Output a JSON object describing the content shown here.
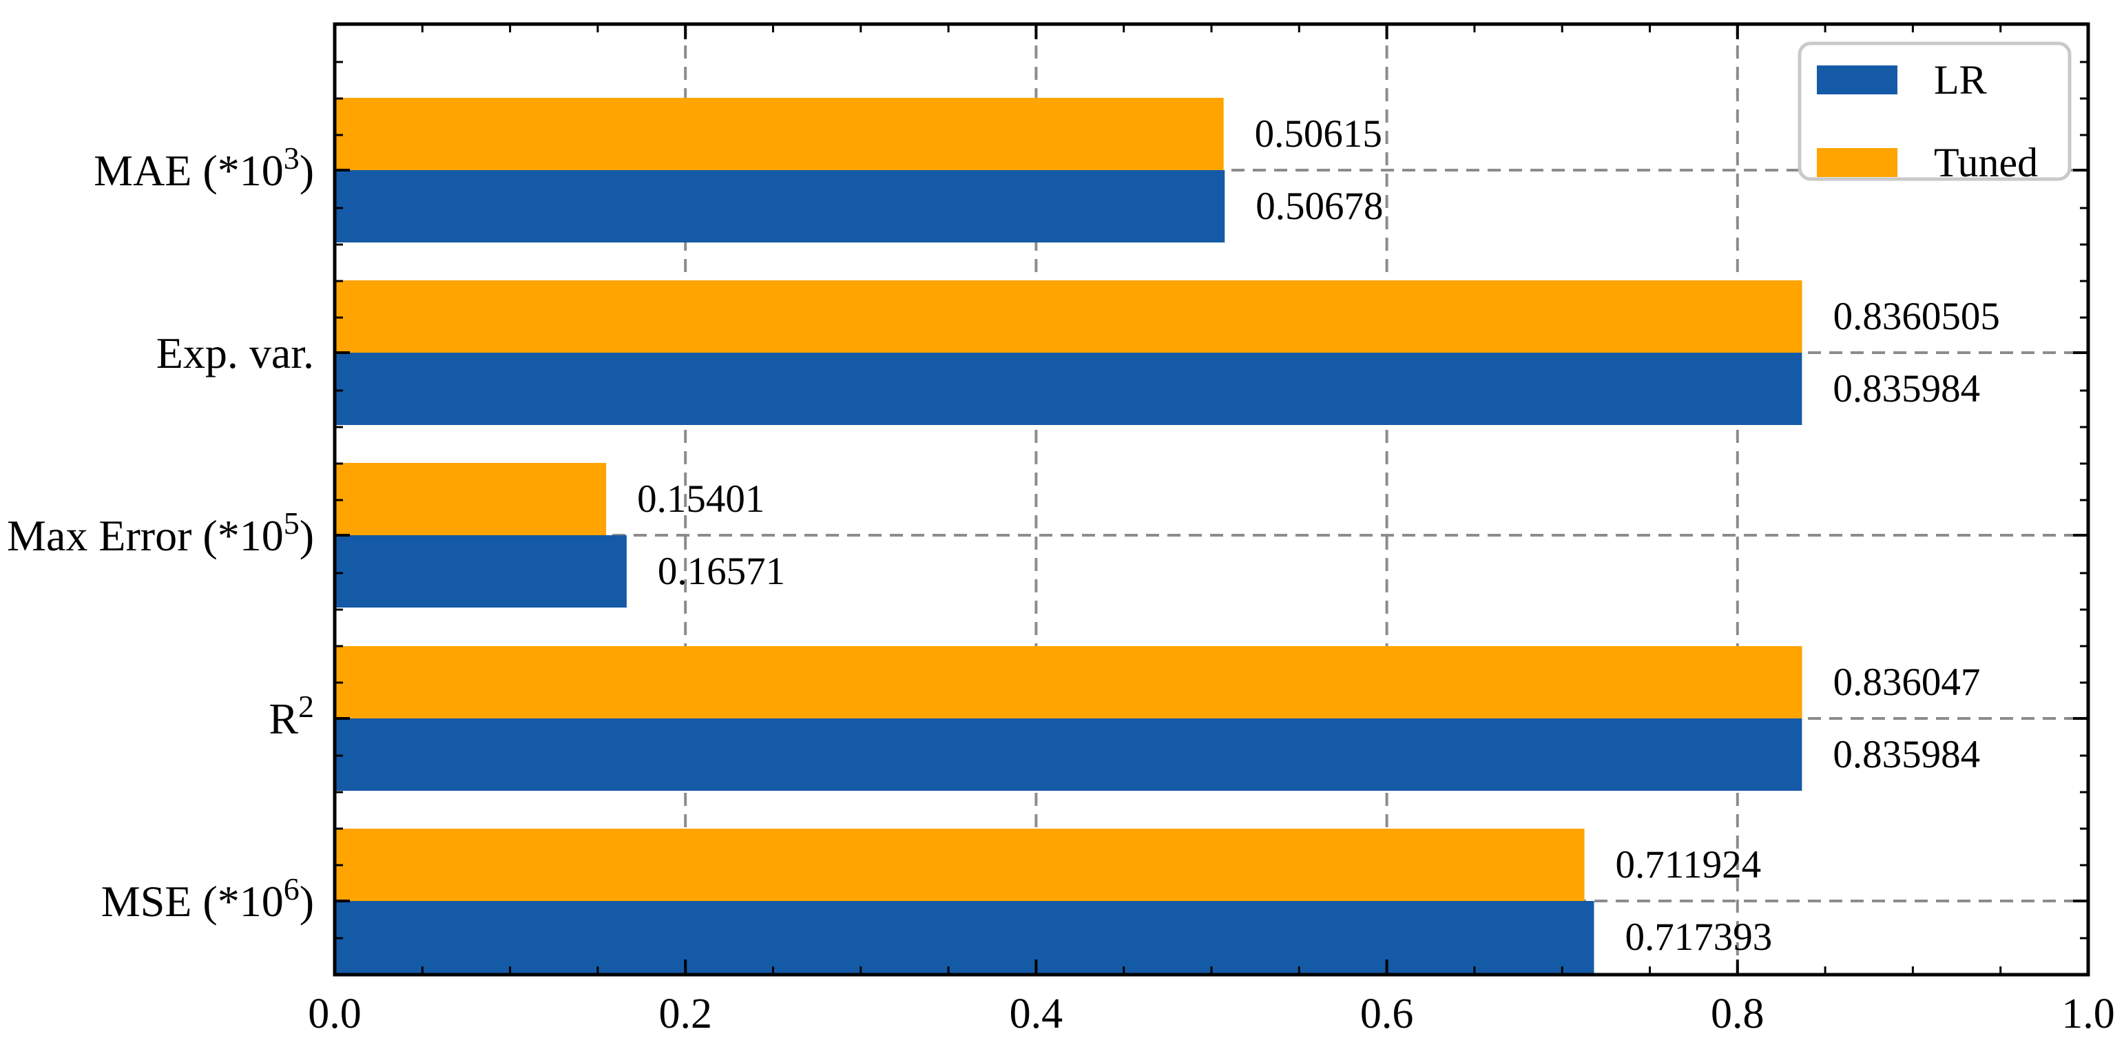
{
  "chart_data": {
    "type": "bar",
    "orientation": "horizontal",
    "title": "",
    "xlabel": "",
    "ylabel": "",
    "categories": [
      "MAE (*10^3)",
      "Exp. var.",
      "Max Error (*10^5)",
      "R^2",
      "MSE (*10^6)"
    ],
    "series": [
      {
        "name": "LR",
        "color": "#155AA6",
        "values": [
          0.50678,
          0.835984,
          0.16571,
          0.835984,
          0.717393
        ],
        "value_labels": [
          "0.50678",
          "0.835984",
          "0.16571",
          "0.835984",
          "0.717393"
        ]
      },
      {
        "name": "Tuned",
        "color": "#FFA400",
        "values": [
          0.50615,
          0.8360505,
          0.15401,
          0.836047,
          0.711924
        ],
        "value_labels": [
          "0.50615",
          "0.8360505",
          "0.15401",
          "0.836047",
          "0.711924"
        ]
      }
    ],
    "xlim": [
      0.0,
      1.0
    ],
    "xticks": {
      "values": [
        0.0,
        0.2,
        0.4,
        0.6,
        0.8,
        1.0
      ],
      "labels": [
        "0.0",
        "0.2",
        "0.4",
        "0.6",
        "0.8",
        "1.0"
      ]
    },
    "grid": {
      "show": true,
      "line_style": "dashed",
      "color": "#8C8C8C"
    },
    "legend": {
      "position": "upper right",
      "entries": [
        "LR",
        "Tuned"
      ],
      "colors": [
        "#155AA6",
        "#FFA400"
      ],
      "border_color": "#C9C9C9"
    },
    "axis_color": "#000000",
    "background_color": "#FFFFFF"
  }
}
